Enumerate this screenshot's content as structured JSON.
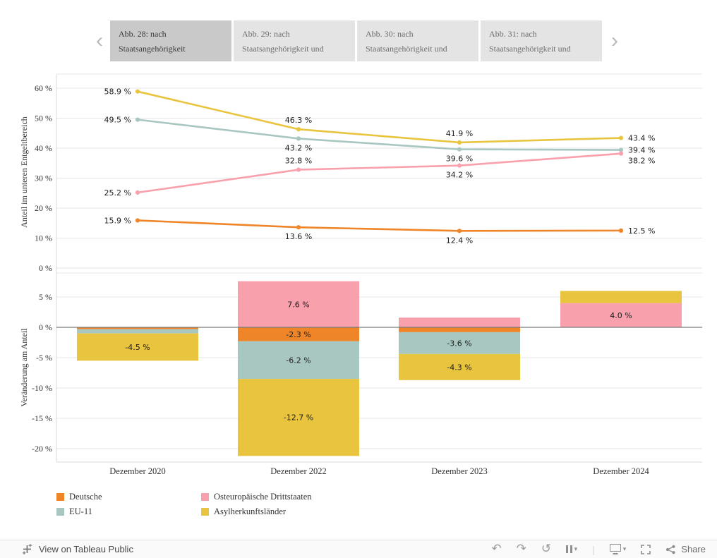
{
  "tabs": {
    "prev_icon": "‹",
    "next_icon": "›",
    "items": [
      {
        "line1": "Abb. 28: nach",
        "line2": "Staatsangehörigkeit",
        "selected": true
      },
      {
        "line1": "Abb. 29: nach",
        "line2": "Staatsangehörigkeit und",
        "selected": false
      },
      {
        "line1": "Abb. 30: nach",
        "line2": "Staatsangehörigkeit und",
        "selected": false
      },
      {
        "line1": "Abb. 31: nach",
        "line2": "Staatsangehörigkeit und",
        "selected": false
      }
    ]
  },
  "chart_data": [
    {
      "type": "line",
      "x": [
        "Dezember 2020",
        "Dezember 2022",
        "Dezember 2023",
        "Dezember 2024"
      ],
      "ylabel": "Anteil im unteren Entgeltbereich",
      "ylim": [
        0,
        62
      ],
      "yticks": [
        60,
        50,
        40,
        30,
        20,
        10,
        0
      ],
      "grid": true,
      "legend_position": "bottom",
      "series": [
        {
          "name": "Asylherkunftsländer",
          "color": "#e9c53f",
          "values": [
            58.9,
            46.3,
            41.9,
            43.4
          ],
          "label_pos": [
            "left",
            "above",
            "above",
            "right"
          ]
        },
        {
          "name": "EU-11",
          "color": "#a9c7c1",
          "values": [
            49.5,
            43.2,
            39.6,
            39.4
          ],
          "label_pos": [
            "left",
            "below",
            "below",
            "right"
          ]
        },
        {
          "name": "Osteuropäische Drittstaaten",
          "color": "#f9a0ad",
          "values": [
            25.2,
            32.8,
            34.2,
            38.2
          ],
          "label_pos": [
            "left",
            "above",
            "below",
            "right-low"
          ]
        },
        {
          "name": "Deutsche",
          "color": "#ee8528",
          "values": [
            15.9,
            13.6,
            12.4,
            12.5
          ],
          "label_pos": [
            "left",
            "below",
            "below",
            "right"
          ]
        }
      ]
    },
    {
      "type": "stacked-bar",
      "categories": [
        "Dezember 2020",
        "Dezember 2022",
        "Dezember 2023",
        "Dezember 2024"
      ],
      "ylabel": "Veränderung am Anteil",
      "ylim": [
        -22,
        8.5
      ],
      "yticks": [
        5,
        0,
        -5,
        -10,
        -15,
        -20
      ],
      "grid": true,
      "series": [
        {
          "name": "Osteuropäische Drittstaaten",
          "color": "#f9a0ad",
          "values": [
            0,
            7.6,
            1.6,
            4.0
          ],
          "labels": [
            null,
            "7.6 %",
            null,
            "4.0 %"
          ]
        },
        {
          "name": "Deutsche",
          "color": "#ee8528",
          "values": [
            -0.3,
            -2.3,
            -0.8,
            0
          ],
          "labels": [
            null,
            "-2.3 %",
            null,
            null
          ]
        },
        {
          "name": "EU-11",
          "color": "#a9c7c1",
          "values": [
            -0.7,
            -6.2,
            -3.6,
            0
          ],
          "labels": [
            null,
            "-6.2 %",
            "-3.6 %",
            null
          ]
        },
        {
          "name": "Asylherkunftsländer",
          "color": "#e9c53f",
          "values": [
            -4.5,
            -12.7,
            -4.3,
            2.0
          ],
          "labels": [
            "-4.5 %",
            "-12.7 %",
            "-4.3 %",
            null
          ]
        }
      ]
    }
  ],
  "legend": {
    "items": [
      {
        "label": "Deutsche",
        "color": "#ee8528"
      },
      {
        "label": "Osteuropäische Drittstaaten",
        "color": "#f9a0ad"
      },
      {
        "label": "EU-11",
        "color": "#a9c7c1"
      },
      {
        "label": "Asylherkunftsländer",
        "color": "#e9c53f"
      }
    ]
  },
  "footer": {
    "brand_label": "View on Tableau Public",
    "share_label": "Share",
    "icons": [
      {
        "name": "undo",
        "type": "glyph",
        "glyph": "↶"
      },
      {
        "name": "redo",
        "type": "glyph",
        "glyph": "↷"
      },
      {
        "name": "reset",
        "type": "glyph",
        "glyph": "↺"
      },
      {
        "name": "pause-auto-updates",
        "type": "pause",
        "caret": "▾"
      },
      {
        "name": "separator",
        "type": "sep",
        "glyph": "|"
      },
      {
        "name": "device-layout",
        "type": "monitor",
        "caret": "▾"
      },
      {
        "name": "fullscreen",
        "type": "fullscreen"
      },
      {
        "name": "share",
        "type": "share"
      }
    ]
  },
  "colors": {
    "accent_orange": "#ee8528",
    "accent_teal": "#a9c7c1",
    "accent_pink": "#f9a0ad",
    "accent_yellow": "#e9c53f",
    "tab_selected_bg": "#c9c9c9",
    "tab_bg": "#e4e4e4"
  }
}
